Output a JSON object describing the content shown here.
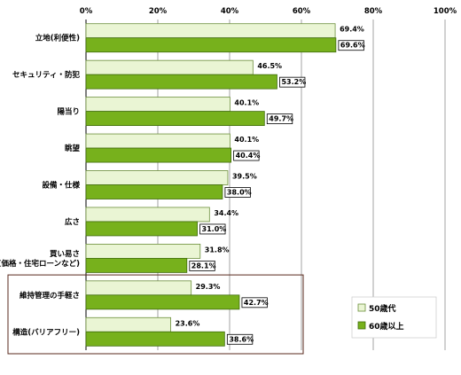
{
  "chart_data": {
    "type": "bar",
    "orientation": "horizontal",
    "title": "",
    "xlabel": "",
    "ylabel": "",
    "xlim": [
      0,
      100
    ],
    "ticks": [
      "0%",
      "20%",
      "40%",
      "60%",
      "80%",
      "100%"
    ],
    "grid": true,
    "legend_position": "bottom-right",
    "categories": [
      [
        "立地(利便性)"
      ],
      [
        "セキュリティ・防犯"
      ],
      [
        "陽当り"
      ],
      [
        "眺望"
      ],
      [
        "設備・仕様"
      ],
      [
        "広さ"
      ],
      [
        "買い易さ",
        "(価格・住宅ローンなど)"
      ],
      [
        "維持管理の手軽さ"
      ],
      [
        "構造(バリアフリー)"
      ]
    ],
    "series": [
      {
        "name": "50歳代",
        "color": "#eaf5d4",
        "stroke": "#6b8e3a",
        "values": [
          69.4,
          46.5,
          40.1,
          40.1,
          39.5,
          34.4,
          31.8,
          29.3,
          23.6
        ],
        "labels": [
          "69.4%",
          "46.5%",
          "40.1%",
          "40.1%",
          "39.5%",
          "34.4%",
          "31.8%",
          "29.3%",
          "23.6%"
        ]
      },
      {
        "name": "60歳以上",
        "color": "#77b11c",
        "stroke": "#3f6b0c",
        "values": [
          69.6,
          53.2,
          49.7,
          40.4,
          38.0,
          31.0,
          28.1,
          42.7,
          38.6
        ],
        "labels": [
          "69.6%",
          "53.2%",
          "49.7%",
          "40.4%",
          "38.0%",
          "31.0%",
          "28.1%",
          "42.7%",
          "38.6%"
        ]
      }
    ],
    "highlight_categories": [
      7,
      8
    ]
  }
}
